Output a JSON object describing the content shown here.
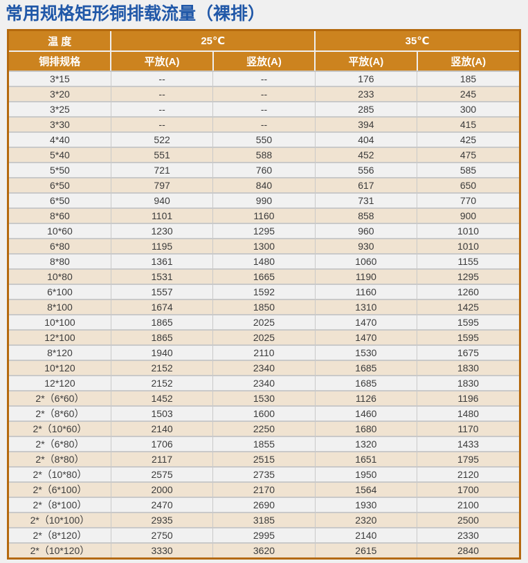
{
  "page_title": "常用规格矩形铜排载流量（裸排）",
  "colors": {
    "title_blue": "#2158A8",
    "header_orange": "#CC831F",
    "frame_border": "#B4690E",
    "row_tan": "#F0E3D1",
    "row_gray": "#F1F1F1"
  },
  "table": {
    "header": {
      "temperature_label": "温 度",
      "temp_groups": [
        "25℃",
        "35℃"
      ],
      "spec_label": "铜排规格",
      "sub_columns": [
        "平放(A)",
        "竖放(A)",
        "平放(A)",
        "竖放(A)"
      ]
    },
    "rows": [
      {
        "spec": "3*15",
        "values": [
          "--",
          "--",
          "176",
          "185"
        ]
      },
      {
        "spec": "3*20",
        "values": [
          "--",
          "--",
          "233",
          "245"
        ]
      },
      {
        "spec": "3*25",
        "values": [
          "--",
          "--",
          "285",
          "300"
        ]
      },
      {
        "spec": "3*30",
        "values": [
          "--",
          "--",
          "394",
          "415"
        ]
      },
      {
        "spec": "4*40",
        "values": [
          "522",
          "550",
          "404",
          "425"
        ]
      },
      {
        "spec": "5*40",
        "values": [
          "551",
          "588",
          "452",
          "475"
        ]
      },
      {
        "spec": "5*50",
        "values": [
          "721",
          "760",
          "556",
          "585"
        ]
      },
      {
        "spec": "6*50",
        "values": [
          "797",
          "840",
          "617",
          "650"
        ]
      },
      {
        "spec": "6*50",
        "values": [
          "940",
          "990",
          "731",
          "770"
        ]
      },
      {
        "spec": "8*60",
        "values": [
          "1101",
          "1160",
          "858",
          "900"
        ]
      },
      {
        "spec": "10*60",
        "values": [
          "1230",
          "1295",
          "960",
          "1010"
        ]
      },
      {
        "spec": "6*80",
        "values": [
          "1195",
          "1300",
          "930",
          "1010"
        ]
      },
      {
        "spec": "8*80",
        "values": [
          "1361",
          "1480",
          "1060",
          "1155"
        ]
      },
      {
        "spec": "10*80",
        "values": [
          "1531",
          "1665",
          "1190",
          "1295"
        ]
      },
      {
        "spec": "6*100",
        "values": [
          "1557",
          "1592",
          "1160",
          "1260"
        ]
      },
      {
        "spec": "8*100",
        "values": [
          "1674",
          "1850",
          "1310",
          "1425"
        ]
      },
      {
        "spec": "10*100",
        "values": [
          "1865",
          "2025",
          "1470",
          "1595"
        ]
      },
      {
        "spec": "12*100",
        "values": [
          "1865",
          "2025",
          "1470",
          "1595"
        ]
      },
      {
        "spec": "8*120",
        "values": [
          "1940",
          "2110",
          "1530",
          "1675"
        ]
      },
      {
        "spec": "10*120",
        "values": [
          "2152",
          "2340",
          "1685",
          "1830"
        ]
      },
      {
        "spec": "12*120",
        "values": [
          "2152",
          "2340",
          "1685",
          "1830"
        ]
      },
      {
        "spec": "2*（6*60）",
        "values": [
          "1452",
          "1530",
          "1126",
          "1196"
        ]
      },
      {
        "spec": "2*（8*60）",
        "values": [
          "1503",
          "1600",
          "1460",
          "1480"
        ]
      },
      {
        "spec": "2*（10*60）",
        "values": [
          "2140",
          "2250",
          "1680",
          "1170"
        ]
      },
      {
        "spec": "2*（6*80）",
        "values": [
          "1706",
          "1855",
          "1320",
          "1433"
        ]
      },
      {
        "spec": "2*（8*80）",
        "values": [
          "2117",
          "2515",
          "1651",
          "1795"
        ]
      },
      {
        "spec": "2*（10*80）",
        "values": [
          "2575",
          "2735",
          "1950",
          "2120"
        ]
      },
      {
        "spec": "2*（6*100）",
        "values": [
          "2000",
          "2170",
          "1564",
          "1700"
        ]
      },
      {
        "spec": "2*（8*100）",
        "values": [
          "2470",
          "2690",
          "1930",
          "2100"
        ]
      },
      {
        "spec": "2*（10*100）",
        "values": [
          "2935",
          "3185",
          "2320",
          "2500"
        ]
      },
      {
        "spec": "2*（8*120）",
        "values": [
          "2750",
          "2995",
          "2140",
          "2330"
        ]
      },
      {
        "spec": "2*（10*120）",
        "values": [
          "3330",
          "3620",
          "2615",
          "2840"
        ]
      }
    ]
  }
}
